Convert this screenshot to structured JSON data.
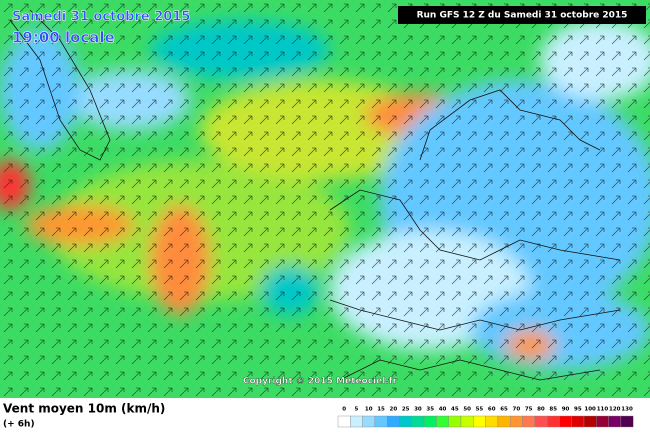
{
  "header": {
    "date": "Samedi 31 octobre 2015",
    "time": "19:00 locale",
    "run": "Run GFS 12 Z du Samedi 31 octobre 2015"
  },
  "map": {
    "copyright": "Copyright © 2015 Meteociel.fr"
  },
  "footer": {
    "title": "Vent moyen 10m (km/h)",
    "subtitle": "(+ 6h)",
    "legend": {
      "ticks": [
        0,
        5,
        10,
        15,
        20,
        25,
        30,
        35,
        40,
        45,
        50,
        55,
        60,
        65,
        70,
        75,
        80,
        85,
        90,
        95,
        100,
        110,
        120,
        130
      ],
      "colors": [
        "#ffffff",
        "#c8f0ff",
        "#96dcff",
        "#64c8ff",
        "#32aaff",
        "#00c8c8",
        "#00dc96",
        "#00f064",
        "#32ff32",
        "#96ff00",
        "#c8ff00",
        "#ffff00",
        "#ffdc00",
        "#ffb400",
        "#ff9632",
        "#ff7850",
        "#ff5050",
        "#ff3232",
        "#ff0000",
        "#dc0000",
        "#b40000",
        "#960032",
        "#780064",
        "#500050"
      ]
    }
  }
}
